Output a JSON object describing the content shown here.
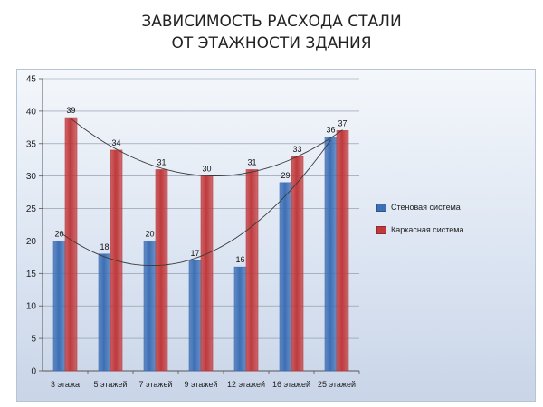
{
  "title": {
    "line1": "ЗАВИСИМОСТЬ РАСХОДА СТАЛИ",
    "line2": "ОТ ЭТАЖНОСТИ ЗДАНИЯ"
  },
  "chart_data": {
    "type": "bar",
    "title": "ЗАВИСИМОСТЬ РАСХОДА СТАЛИ ОТ ЭТАЖНОСТИ ЗДАНИЯ",
    "xlabel": "",
    "ylabel": "",
    "categories": [
      "3 этажа",
      "5 этажей",
      "7 этажей",
      "9 этажей",
      "12 этажей",
      "16 этажей",
      "25 этажей"
    ],
    "series": [
      {
        "name": "Стеновая система",
        "values": [
          20,
          18,
          20,
          17,
          16,
          29,
          36
        ],
        "color": "#3d6fb5"
      },
      {
        "name": "Каркасная система",
        "values": [
          39,
          34,
          31,
          30,
          31,
          33,
          37
        ],
        "color": "#c0393b"
      }
    ],
    "ylim": [
      0,
      45
    ],
    "yticks": [
      0,
      5,
      10,
      15,
      20,
      25,
      30,
      35,
      40,
      45
    ],
    "grid": true,
    "legend_position": "right",
    "trendlines": true
  }
}
